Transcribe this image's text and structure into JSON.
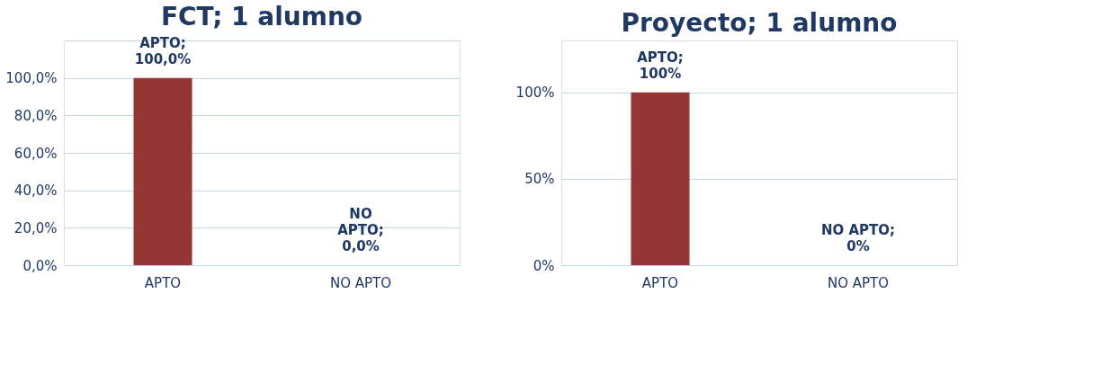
{
  "chart_data": [
    {
      "type": "bar",
      "title": "FCT;  1 alumno",
      "categories": [
        "APTO",
        "NO APTO"
      ],
      "values": [
        100,
        0
      ],
      "colors": [
        "#943634",
        "#1f3864"
      ],
      "ylim": [
        0,
        120
      ],
      "yticks": [
        {
          "value": 0,
          "label": "0,0%"
        },
        {
          "value": 20,
          "label": "20,0%"
        },
        {
          "value": 40,
          "label": "40,0%"
        },
        {
          "value": 60,
          "label": "60,0%"
        },
        {
          "value": 80,
          "label": "80,0%"
        },
        {
          "value": 100,
          "label": "100,0%"
        },
        {
          "value": 120,
          "label": null
        }
      ],
      "grid": "y",
      "value_labels": [
        "APTO;\n100,0%",
        "NO\nAPTO;\n0,0%"
      ]
    },
    {
      "type": "bar",
      "title": "Proyecto;  1 alumno",
      "categories": [
        "APTO",
        "NO APTO"
      ],
      "values": [
        100,
        0
      ],
      "colors": [
        "#943634",
        "#1f3864"
      ],
      "ylim": [
        0,
        130
      ],
      "yticks": [
        {
          "value": 0,
          "label": "0%"
        },
        {
          "value": 50,
          "label": "50%"
        },
        {
          "value": 100,
          "label": "100%"
        }
      ],
      "grid": "y",
      "value_labels": [
        "APTO;\n100%",
        "NO APTO;\n0%"
      ]
    }
  ]
}
